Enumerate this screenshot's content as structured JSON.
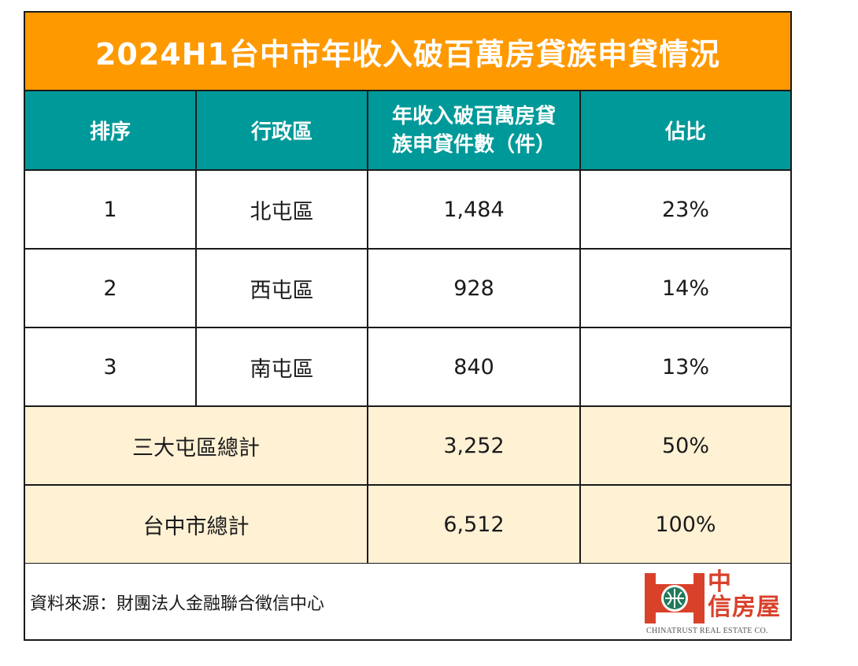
{
  "title": "2024H1台中市年收入破百萬房貸族申貸情況",
  "headers": {
    "rank": "排序",
    "district": "行政區",
    "count_line1": "年收入破百萬房貸",
    "count_line2": "族申貸件數（件）",
    "share": "佔比"
  },
  "rows": [
    {
      "rank": "1",
      "district": "北屯區",
      "count": "1,484",
      "share": "23%"
    },
    {
      "rank": "2",
      "district": "西屯區",
      "count": "928",
      "share": "14%"
    },
    {
      "rank": "3",
      "district": "南屯區",
      "count": "840",
      "share": "13%"
    }
  ],
  "totals": [
    {
      "label": "三大屯區總計",
      "count": "3,252",
      "share": "50%"
    },
    {
      "label": "台中市總計",
      "count": "6,512",
      "share": "100%"
    }
  ],
  "source": "資料來源：財團法人金融聯合徵信中心",
  "logo": {
    "cn_line1": "中",
    "cn_line2": "信房屋",
    "en": "CHINATRUST REAL ESTATE CO."
  },
  "colors": {
    "title_bg": "#ff9900",
    "header_bg": "#009999",
    "total_bg": "#fff1d4",
    "logo_red": "#d9412b"
  }
}
